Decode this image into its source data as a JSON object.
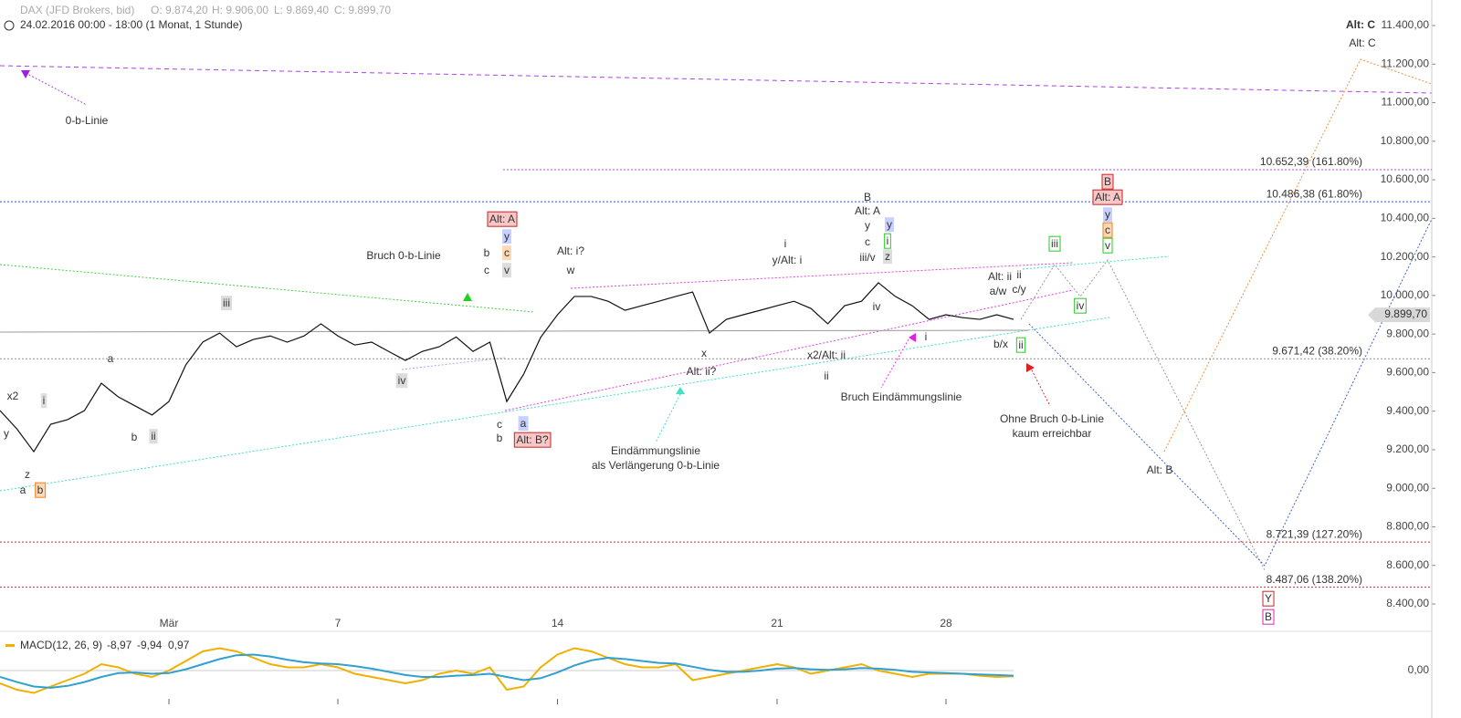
{
  "header": {
    "instrument": "DAX (JFD Brokers, bid)",
    "open": "O: 9.874,20",
    "high": "H: 9.906,00",
    "low": "L: 9.869,40",
    "close": "C: 9.899,70",
    "range": "24.02.2016 00:00 - 18:00 (1 Monat, 1 Stunde)"
  },
  "chart_data": {
    "type": "line",
    "categories": [
      null,
      null,
      null,
      null,
      null,
      null,
      null,
      null,
      null,
      null,
      "Mär",
      null,
      null,
      null,
      null,
      null,
      null,
      null,
      null,
      null,
      "7",
      null,
      null,
      null,
      null,
      null,
      null,
      null,
      null,
      null,
      null,
      null,
      null,
      "14",
      null,
      null,
      null,
      null,
      null,
      null,
      null,
      null,
      null,
      null,
      null,
      null,
      "21",
      null,
      null,
      null,
      null,
      null,
      null,
      null,
      null,
      null,
      "28",
      null,
      null,
      null,
      null
    ],
    "series": [
      {
        "name": "DAX",
        "color": "#111111",
        "values": [
          9403,
          9308,
          9190,
          9332,
          9356,
          9403,
          9545,
          9474,
          9427,
          9380,
          9450,
          9640,
          9758,
          9805,
          9734,
          9772,
          9790,
          9758,
          9790,
          9853,
          9790,
          9743,
          9758,
          9710,
          9663,
          9710,
          9734,
          9785,
          9710,
          9758,
          9450,
          9592,
          9782,
          9900,
          9995,
          9995,
          9970,
          9923,
          9947,
          9970,
          9995,
          10018,
          9805,
          9876,
          9900,
          9923,
          9947,
          9970,
          9933,
          9853,
          9947,
          9970,
          10066,
          9995,
          9947,
          9876,
          9900,
          9885,
          9876,
          9900,
          9876
        ]
      }
    ],
    "ylim": [
      8400,
      11400
    ],
    "yticks": [
      {
        "value": 8400,
        "label": "8.400,00"
      },
      {
        "value": 8600,
        "label": "8.600,00"
      },
      {
        "value": 8800,
        "label": "8.800,00"
      },
      {
        "value": 9000,
        "label": "9.000,00"
      },
      {
        "value": 9200,
        "label": "9.200,00"
      },
      {
        "value": 9400,
        "label": "9.400,00"
      },
      {
        "value": 9600,
        "label": "9.600,00"
      },
      {
        "value": 9800,
        "label": "9.800,00"
      },
      {
        "value": 10000,
        "label": "10.000,00"
      },
      {
        "value": 10200,
        "label": "10.200,00"
      },
      {
        "value": 10400,
        "label": "10.400,00"
      },
      {
        "value": 10600,
        "label": "10.600,00"
      },
      {
        "value": 10800,
        "label": "10.800,00"
      },
      {
        "value": 11000,
        "label": "11.000,00"
      },
      {
        "value": 11200,
        "label": "11.200,00"
      },
      {
        "value": 11400,
        "label": "11.400,00"
      }
    ],
    "last_price": {
      "value": 9899.7,
      "label": "9.899,70"
    },
    "levels": [
      {
        "value": 10652.39,
        "label": "10.652,39 (161.80%)",
        "color": "#c040e0"
      },
      {
        "value": 10486.38,
        "label": "10.486,38 (61.80%)",
        "color": "#3050d0"
      },
      {
        "value": 9671.42,
        "label": "9.671,42 (38.20%)",
        "color": "#909090"
      },
      {
        "value": 8721.39,
        "label": "8.721,39 (127.20%)",
        "color": "#c03030"
      },
      {
        "value": 8487.06,
        "label": "8.487,06 (138.20%)",
        "color": "#c03030"
      }
    ],
    "annotations": [
      "0-b-Linie",
      "x2",
      "i",
      "y",
      "z",
      "a",
      "b",
      "a",
      "b",
      "ii",
      "iii",
      "iv",
      "Bruch 0-b-Linie",
      "Alt: A",
      "y",
      "b",
      "c",
      "c",
      "v",
      "c",
      "b",
      "a",
      "Alt: B?",
      "Alt: i?",
      "w",
      "Eindämmungslinie",
      "als Verlängerung 0-b-Linie",
      "x",
      "Alt: ii?",
      "i",
      "y/Alt: i",
      "x2/Alt: ii",
      "ii",
      "B",
      "Alt: A",
      "y",
      "y",
      "c",
      "i",
      "iii/v",
      "z",
      "iv",
      "Bruch Eindämmungslinie",
      "i",
      "Alt: ii",
      "ii",
      "a/w",
      "c/y",
      "b/x",
      "ii",
      "iii",
      "iv",
      "B",
      "Alt: A",
      "y",
      "c",
      "v",
      "Ohne Bruch 0-b-Linie",
      "kaum erreichbar",
      "Alt: B",
      "Alt: C",
      "Alt: C",
      "Y",
      "B"
    ],
    "macd": {
      "name": "MACD(12, 26, 9)",
      "value_macd": "-8,97",
      "value_signal": "-9,94",
      "value_hist": "0,97",
      "ylim": [
        -50,
        50
      ],
      "yticks": [
        {
          "value": 0,
          "label": "0,00"
        }
      ],
      "series": [
        {
          "color": "#f0b000",
          "values": [
            -20,
            -30,
            -35,
            -25,
            -15,
            -5,
            10,
            5,
            -5,
            -10,
            0,
            15,
            30,
            35,
            30,
            20,
            10,
            5,
            5,
            10,
            5,
            -5,
            -10,
            -15,
            -20,
            -15,
            -5,
            0,
            -5,
            5,
            -30,
            -25,
            5,
            25,
            35,
            30,
            20,
            10,
            5,
            5,
            10,
            -15,
            -10,
            -5,
            0,
            5,
            10,
            5,
            -5,
            0,
            5,
            10,
            0,
            -5,
            -10,
            -5,
            -5,
            -5,
            -8,
            -10,
            -9
          ]
        },
        {
          "color": "#30a0d0",
          "values": [
            -10,
            -18,
            -25,
            -27,
            -24,
            -18,
            -10,
            -4,
            -3,
            -5,
            -4,
            2,
            10,
            18,
            24,
            25,
            22,
            17,
            13,
            11,
            10,
            7,
            3,
            -2,
            -7,
            -10,
            -10,
            -8,
            -7,
            -5,
            -10,
            -15,
            -12,
            -3,
            8,
            16,
            20,
            18,
            15,
            12,
            11,
            6,
            1,
            -2,
            -2,
            0,
            3,
            4,
            2,
            1,
            2,
            4,
            3,
            1,
            -2,
            -3,
            -4,
            -5,
            -6,
            -7,
            -8
          ]
        }
      ]
    }
  }
}
